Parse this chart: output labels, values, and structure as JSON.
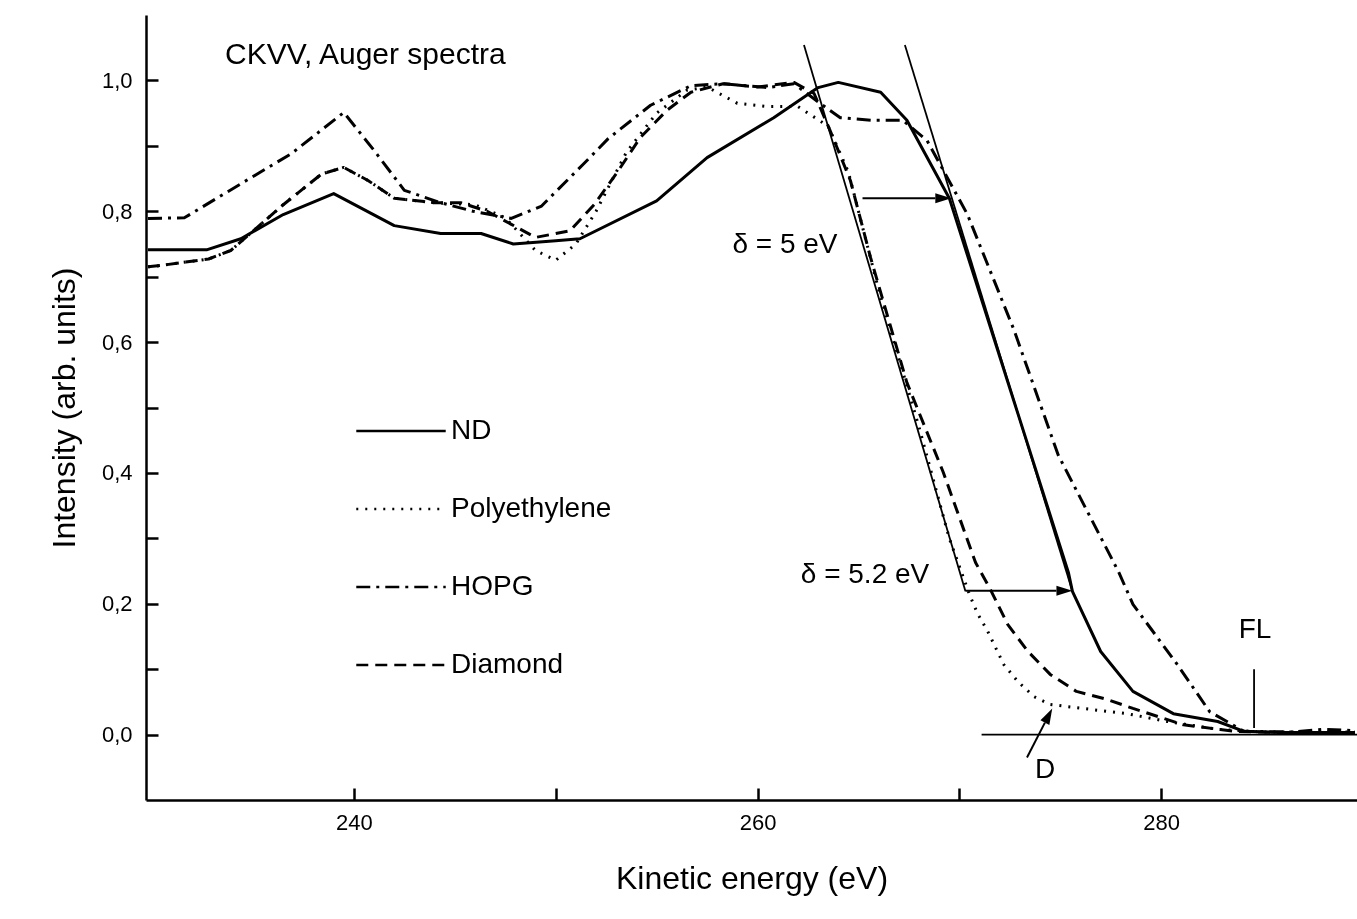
{
  "chart_data": {
    "type": "line",
    "title": "CKVV, Auger spectra",
    "xlabel": "Kinetic energy (eV)",
    "ylabel": "Intensity (arb. units)",
    "xlim": [
      229.7,
      289.7
    ],
    "ylim": [
      -0.1,
      1.1
    ],
    "xticks": [
      240,
      {
        "value": 250,
        "label": null
      },
      260,
      {
        "value": 270,
        "label": null
      },
      280
    ],
    "yticks": [
      {
        "value": 0,
        "label": "0,0"
      },
      {
        "value": 0.1,
        "label": null
      },
      {
        "value": 0.2,
        "label": "0,2"
      },
      {
        "value": 0.3,
        "label": null
      },
      {
        "value": 0.4,
        "label": "0,4"
      },
      {
        "value": 0.5,
        "label": null
      },
      {
        "value": 0.6,
        "label": "0,6"
      },
      {
        "value": 0.7,
        "label": null
      },
      {
        "value": 0.8,
        "label": "0,8"
      },
      {
        "value": 0.9,
        "label": null
      },
      {
        "value": 1.0,
        "label": "1,0"
      }
    ],
    "legend": "left",
    "grid": false,
    "annotations": [
      "δ = 5 eV",
      "δ = 5.2 eV",
      "FL",
      "D"
    ],
    "series": [
      {
        "name": "ND",
        "color": "#000000",
        "line_style": "solid",
        "x": [
          229.8,
          232.7,
          234.4,
          236.5,
          239.0,
          242.0,
          244.3,
          246.3,
          247.9,
          250.0,
          251.2,
          255.0,
          257.5,
          260.8,
          263.0,
          264.0,
          266.1,
          267.4,
          269.5,
          272.7,
          275.4,
          275.6,
          277.0,
          278.6,
          280.6,
          282.8,
          284.1,
          286.0,
          289.6
        ],
        "values": [
          0.741,
          0.741,
          0.758,
          0.795,
          0.827,
          0.778,
          0.766,
          0.766,
          0.75,
          0.755,
          0.758,
          0.816,
          0.882,
          0.943,
          0.989,
          0.997,
          0.982,
          0.939,
          0.82,
          0.51,
          0.248,
          0.219,
          0.127,
          0.066,
          0.032,
          0.02,
          0.005,
          0.003,
          0.003
        ]
      },
      {
        "name": "Polyethylene",
        "color": "#000000",
        "line_style": "dotted",
        "x": [
          229.8,
          230.4,
          232.8,
          233.9,
          235.2,
          236.5,
          238.4,
          239.5,
          240.7,
          242.0,
          244.0,
          246.0,
          247.5,
          249.0,
          250.0,
          251.0,
          252.0,
          252.5,
          253.5,
          255.0,
          256.5,
          257.5,
          259.0,
          260.5,
          262.0,
          263.5,
          264.5,
          266.0,
          268.0,
          269.5,
          270.5,
          270.9,
          271.4,
          272.2,
          272.9,
          273.7,
          274.5,
          276.1,
          278.3,
          280.3,
          282.8,
          285.0,
          289.6
        ],
        "values": [
          0.715,
          0.717,
          0.727,
          0.74,
          0.775,
          0.81,
          0.857,
          0.867,
          0.847,
          0.82,
          0.813,
          0.81,
          0.79,
          0.74,
          0.725,
          0.75,
          0.8,
          0.83,
          0.89,
          0.95,
          0.985,
          0.99,
          0.965,
          0.96,
          0.96,
          0.93,
          0.86,
          0.68,
          0.47,
          0.3,
          0.214,
          0.185,
          0.158,
          0.107,
          0.081,
          0.058,
          0.046,
          0.04,
          0.032,
          0.02,
          0.008,
          0.004,
          0.004
        ]
      },
      {
        "name": "HOPG",
        "color": "#000000",
        "line_style": "dashdot",
        "x": [
          229.8,
          231.6,
          234.4,
          236.9,
          239.5,
          241.0,
          242.5,
          244.3,
          245.9,
          247.8,
          249.3,
          251.4,
          252.6,
          254.7,
          256.7,
          258.3,
          260.5,
          261.8,
          263.1,
          264.1,
          265.7,
          267.2,
          268.4,
          270.4,
          272.7,
          274.9,
          277.9,
          278.6,
          280.8,
          282.4,
          284.1,
          286.5,
          288.0,
          289.6
        ],
        "values": [
          0.789,
          0.79,
          0.842,
          0.888,
          0.951,
          0.893,
          0.832,
          0.813,
          0.8,
          0.789,
          0.808,
          0.873,
          0.911,
          0.962,
          0.992,
          0.995,
          0.989,
          0.995,
          0.965,
          0.943,
          0.939,
          0.939,
          0.908,
          0.795,
          0.619,
          0.427,
          0.248,
          0.199,
          0.107,
          0.035,
          0.005,
          0.004,
          0.008,
          0.006
        ]
      },
      {
        "name": "Diamond",
        "color": "#000000",
        "line_style": "dashed",
        "x": [
          229.8,
          230.4,
          232.8,
          233.9,
          235.2,
          236.5,
          238.4,
          239.5,
          240.7,
          242.0,
          244.0,
          245.3,
          246.6,
          247.8,
          249.0,
          250.7,
          251.9,
          253.1,
          254.2,
          255.5,
          256.7,
          258.3,
          260.0,
          261.8,
          262.8,
          263.6,
          264.6,
          265.6,
          267.4,
          269.2,
          270.8,
          271.5,
          272.4,
          273.4,
          274.5,
          275.8,
          277.3,
          278.6,
          281.1,
          283.6,
          286.0,
          289.6
        ],
        "values": [
          0.715,
          0.717,
          0.727,
          0.74,
          0.775,
          0.81,
          0.857,
          0.867,
          0.847,
          0.82,
          0.813,
          0.813,
          0.8,
          0.78,
          0.76,
          0.77,
          0.81,
          0.862,
          0.913,
          0.954,
          0.982,
          0.995,
          0.99,
          0.997,
          0.98,
          0.923,
          0.847,
          0.729,
          0.538,
          0.401,
          0.263,
          0.224,
          0.168,
          0.127,
          0.092,
          0.066,
          0.054,
          0.04,
          0.015,
          0.005,
          0.003,
          0.003
        ]
      },
      {
        "type": "line",
        "color": "#000000",
        "x": [
          262.3,
          270.3
        ],
        "values": [
          1.054,
          0.219
        ]
      },
      {
        "type": "line",
        "color": "#000000",
        "x": [
          267.3,
          275.6
        ],
        "values": [
          1.054,
          0.219
        ]
      },
      {
        "type": "line",
        "color": "#000000",
        "x": [
          271.1,
          289.7
        ],
        "values": [
          0,
          0
        ]
      },
      {
        "type": "line",
        "color": "#000000",
        "x": [
          284.6,
          284.6
        ],
        "values": [
          0.01,
          0.1
        ]
      }
    ]
  }
}
